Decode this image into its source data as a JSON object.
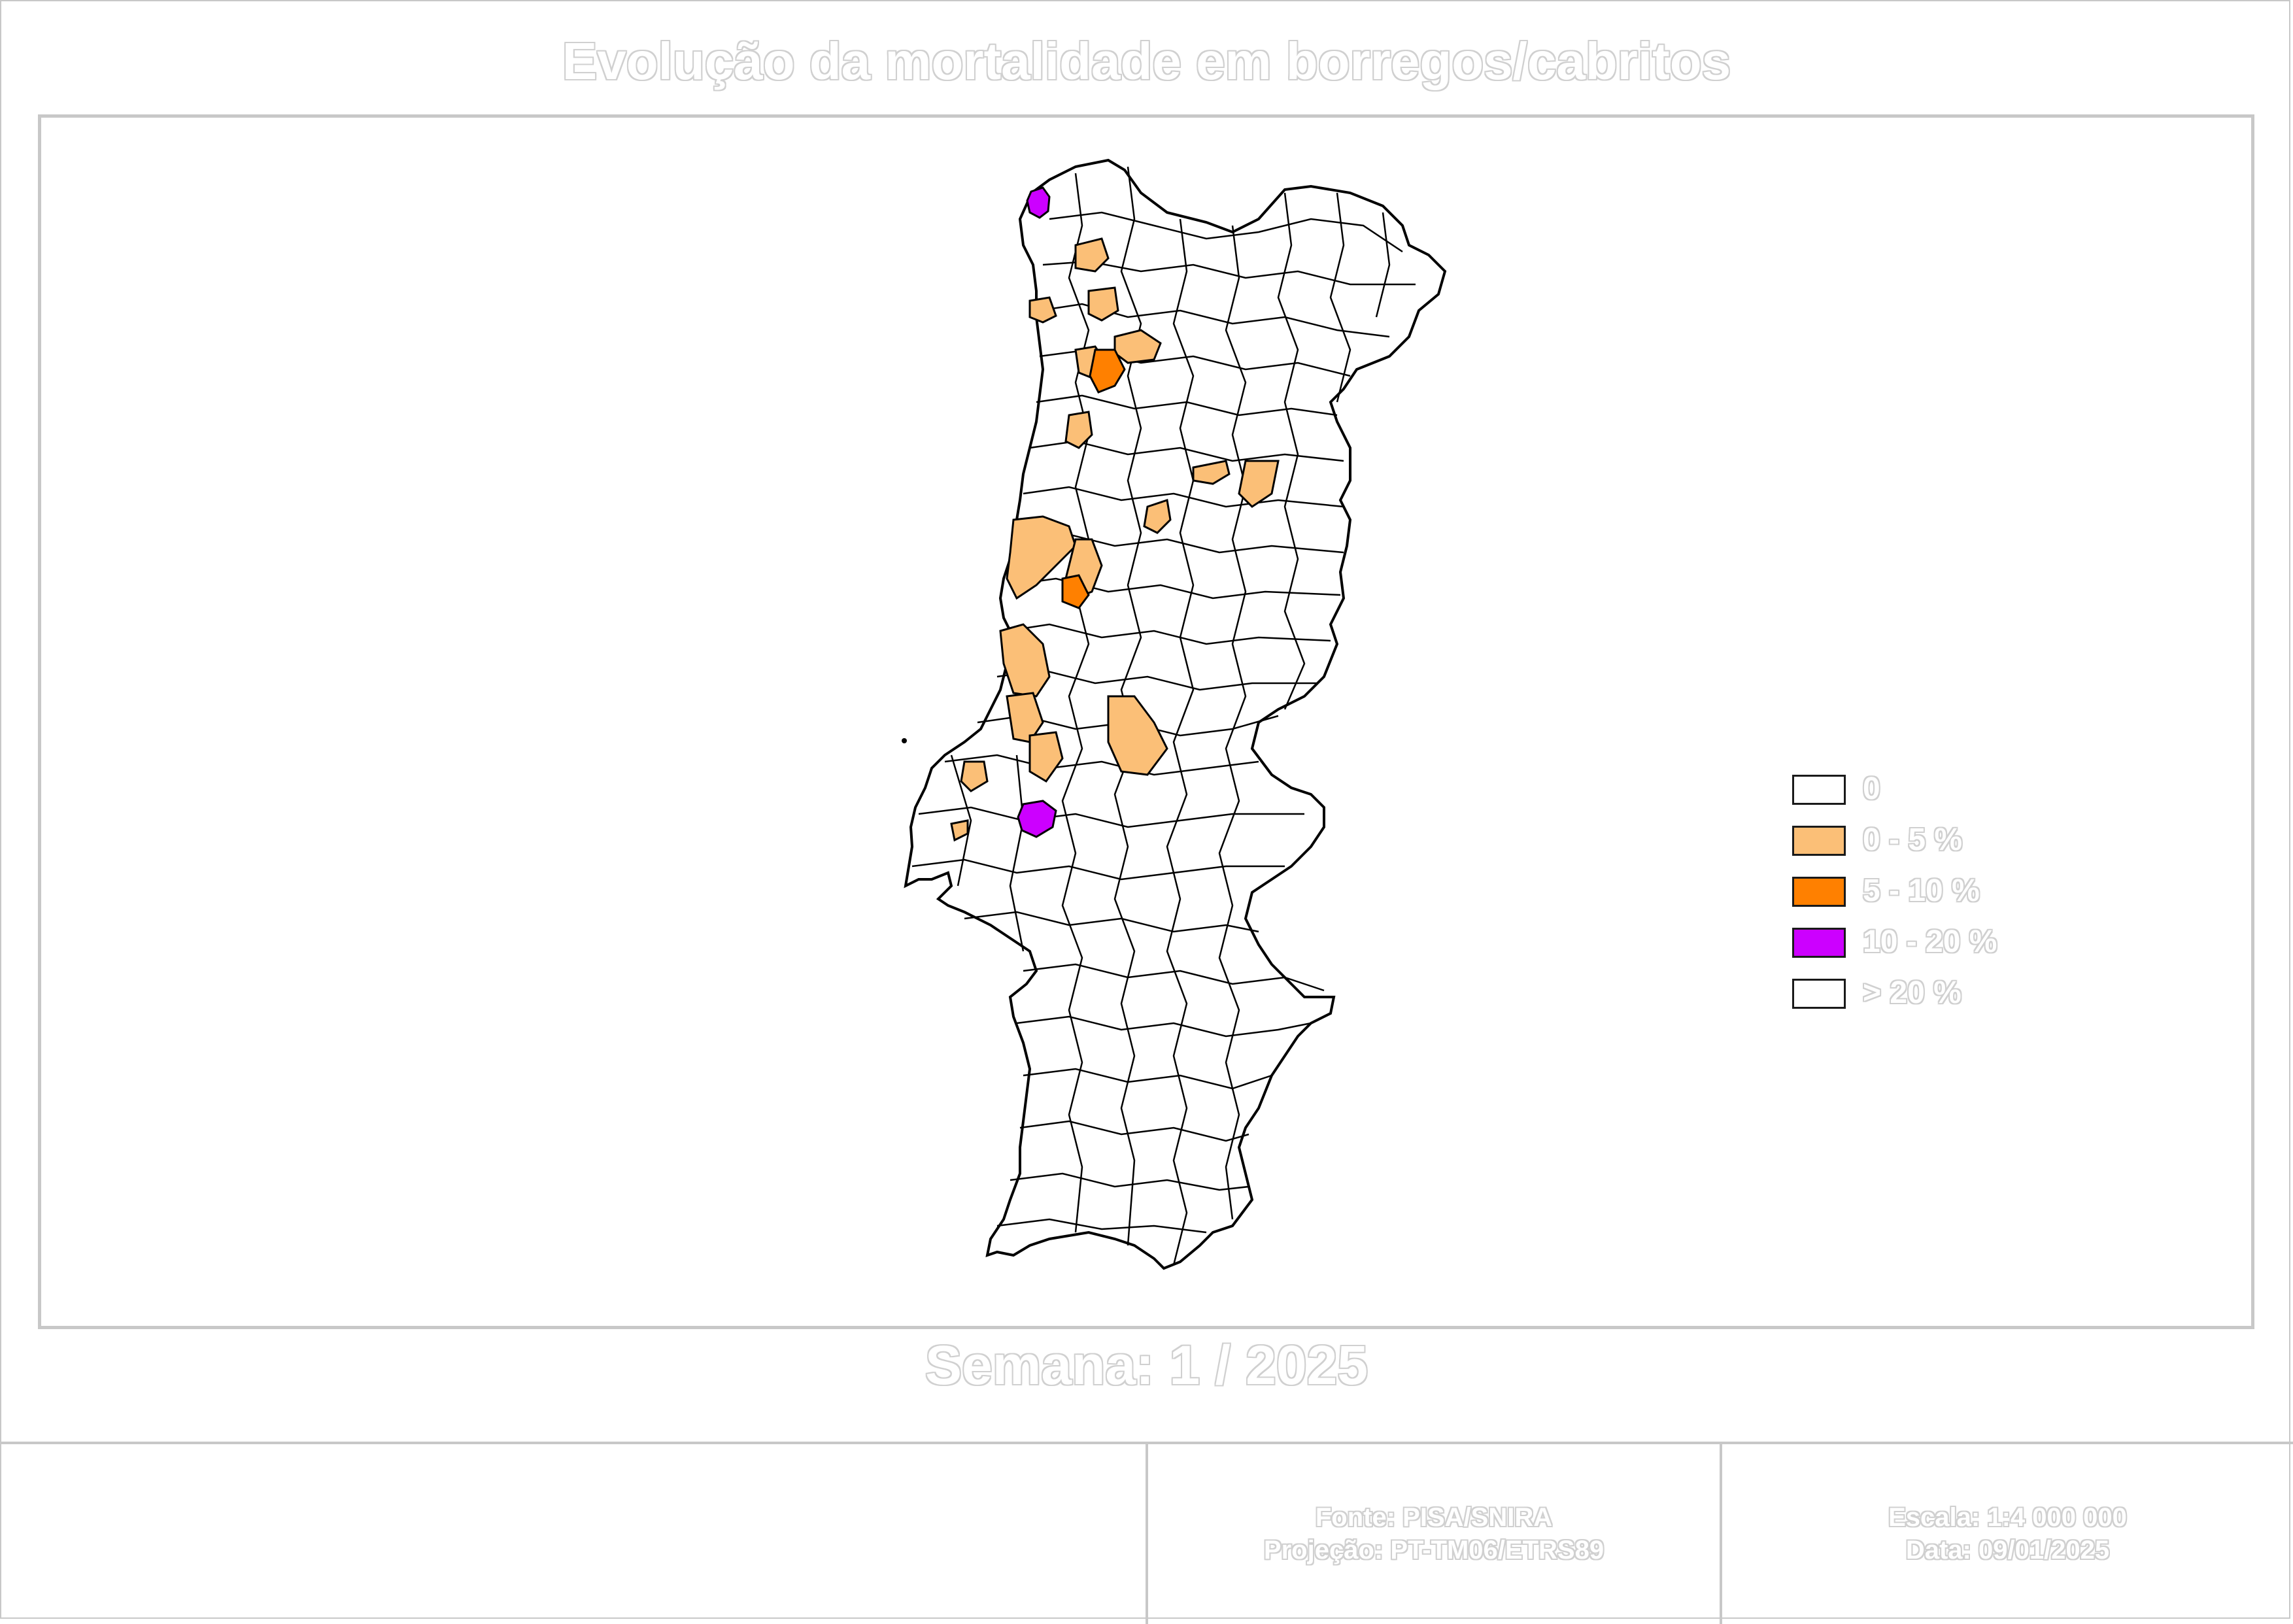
{
  "title": "Evolução da mortalidade em borregos/cabritos",
  "week_label": "Semana: 1 / 2025",
  "legend": [
    {
      "label": "0",
      "color": "#ffffff"
    },
    {
      "label": "0 - 5 %",
      "color": "#fbbf77"
    },
    {
      "label": "5 - 10 %",
      "color": "#ff8000"
    },
    {
      "label": "10 - 20 %",
      "color": "#cc00ff"
    },
    {
      "label": "> 20 %",
      "color": "#ffffff"
    }
  ],
  "footer": {
    "source_line": "Fonte: PISA/SNIRA",
    "projection_line": "Projeção: PT-TM06/ETRS89",
    "scale_line": "Escala: 1:4 000 000",
    "date_line": "Data: 09/01/2025"
  },
  "map": {
    "country": "Portugal",
    "unit": "concelhos",
    "outline_color": "#000000"
  }
}
